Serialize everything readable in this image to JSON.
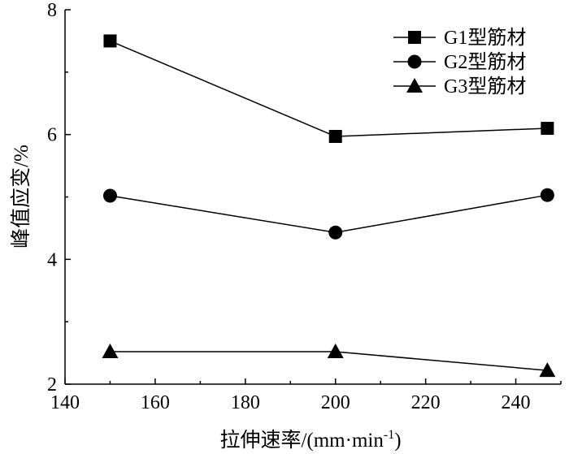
{
  "chart_data": {
    "type": "line",
    "xlabel": "拉伸速率/(mm·min",
    "xlabel_sup": "-1",
    "xlabel_end": ")",
    "ylabel": "峰值应变/%",
    "xlim": [
      140,
      250
    ],
    "ylim": [
      2,
      8
    ],
    "xticks": [
      140,
      160,
      180,
      200,
      220,
      240
    ],
    "yticks": [
      2,
      4,
      6,
      8
    ],
    "x": [
      150,
      200,
      247
    ],
    "series": [
      {
        "name": "G1型筋材",
        "marker": "square",
        "values": [
          7.5,
          5.97,
          6.1
        ]
      },
      {
        "name": "G2型筋材",
        "marker": "circle",
        "values": [
          5.02,
          4.43,
          5.03
        ]
      },
      {
        "name": "G3型筋材",
        "marker": "triangle",
        "values": [
          2.52,
          2.52,
          2.22
        ]
      }
    ],
    "grid": false,
    "legend_position": "top-right",
    "color": "#000000"
  }
}
